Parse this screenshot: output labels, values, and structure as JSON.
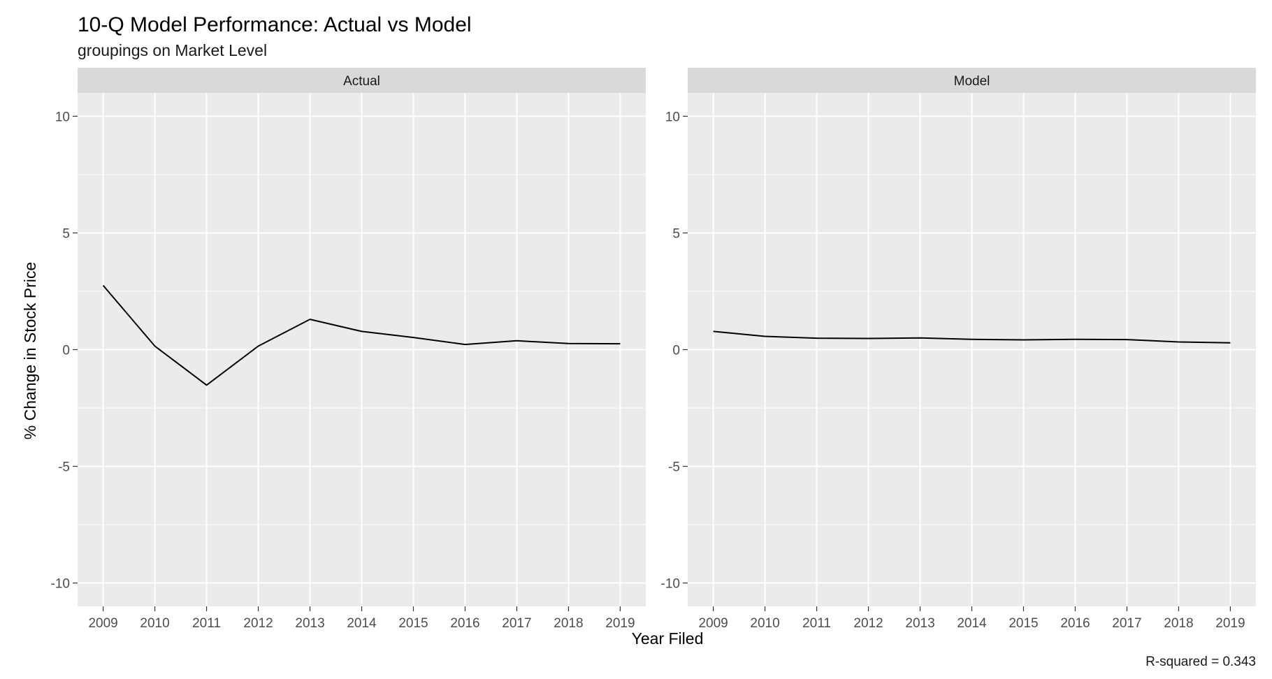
{
  "chart_data": {
    "type": "line",
    "title": "10-Q Model Performance: Actual vs Model",
    "subtitle": "groupings on Market Level",
    "xlabel": "Year Filed",
    "ylabel": "% Change in Stock Price",
    "caption": "R-squared = 0.343",
    "x": [
      2009,
      2010,
      2011,
      2012,
      2013,
      2014,
      2015,
      2016,
      2017,
      2018,
      2019
    ],
    "x_tick_labels": [
      "2009",
      "2010",
      "2011",
      "2012",
      "2013",
      "2014",
      "2015",
      "2016",
      "2017",
      "2018",
      "2019"
    ],
    "y_ticks": [
      -10,
      -5,
      0,
      5,
      10
    ],
    "y_tick_labels": [
      "-10",
      "-5",
      "0",
      "5",
      "10"
    ],
    "ylim": [
      -11,
      11
    ],
    "grid": true,
    "facets": [
      {
        "label": "Actual",
        "values": [
          2.75,
          0.15,
          -1.52,
          0.15,
          1.3,
          0.78,
          0.52,
          0.22,
          0.38,
          0.26,
          0.25
        ]
      },
      {
        "label": "Model",
        "values": [
          0.78,
          0.57,
          0.49,
          0.48,
          0.5,
          0.44,
          0.42,
          0.44,
          0.43,
          0.33,
          0.29
        ]
      }
    ],
    "colors": {
      "panel_bg": "#ebebeb",
      "strip_bg": "#d9d9d9",
      "grid": "#ffffff",
      "line": "#000000"
    }
  }
}
